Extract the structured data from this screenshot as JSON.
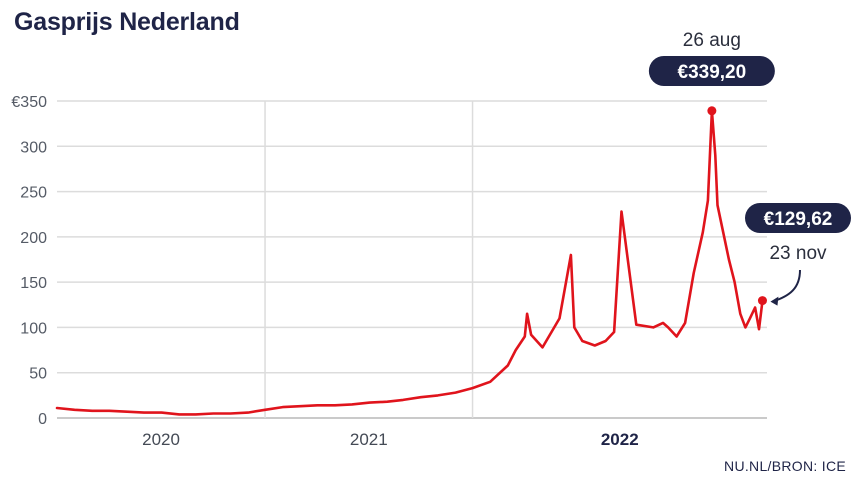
{
  "title": "Gasprijs Nederland",
  "source": "NU.NL/BRON: ICE",
  "colors": {
    "line": "#e0141c",
    "badge": "#1f2447",
    "grid": "#dcdcdc"
  },
  "chart_data": {
    "type": "line",
    "title": "Gasprijs Nederland",
    "xlabel": "",
    "ylabel": "",
    "ylim": [
      0,
      350
    ],
    "xlim": [
      "2019-07-01",
      "2022-12-01"
    ],
    "yticks": [
      {
        "value": 0,
        "label": "0"
      },
      {
        "value": 50,
        "label": "50"
      },
      {
        "value": 100,
        "label": "100"
      },
      {
        "value": 150,
        "label": "150"
      },
      {
        "value": 200,
        "label": "200"
      },
      {
        "value": 250,
        "label": "250"
      },
      {
        "value": 300,
        "label": "300"
      },
      {
        "value": 350,
        "label": "€350"
      }
    ],
    "xticks": [
      {
        "label": "2020",
        "bold": false
      },
      {
        "label": "2021",
        "bold": false
      },
      {
        "label": "2022",
        "bold": true
      }
    ],
    "xgrid_dates": [
      "2020-07-01",
      "2021-07-01"
    ],
    "grid": true,
    "series": [
      {
        "x": [
          "2019-07-01",
          "2019-08-01",
          "2019-09-01",
          "2019-10-01",
          "2019-11-01",
          "2019-12-01",
          "2020-01-01",
          "2020-02-01",
          "2020-03-01",
          "2020-04-01",
          "2020-05-01",
          "2020-06-01",
          "2020-07-01",
          "2020-08-01",
          "2020-09-01",
          "2020-10-01",
          "2020-11-01",
          "2020-12-01",
          "2021-01-01",
          "2021-02-01",
          "2021-03-01",
          "2021-04-01",
          "2021-05-01",
          "2021-06-01",
          "2021-07-01",
          "2021-08-01",
          "2021-09-01",
          "2021-09-15",
          "2021-10-01",
          "2021-10-05",
          "2021-10-12",
          "2021-11-01",
          "2021-12-01",
          "2021-12-21",
          "2021-12-27",
          "2022-01-10",
          "2022-02-01",
          "2022-02-20",
          "2022-03-07",
          "2022-03-20",
          "2022-04-15",
          "2022-05-15",
          "2022-06-01",
          "2022-06-10",
          "2022-06-25",
          "2022-07-10",
          "2022-07-25",
          "2022-08-10",
          "2022-08-19",
          "2022-08-26",
          "2022-09-01",
          "2022-09-05",
          "2022-09-15",
          "2022-09-25",
          "2022-10-05",
          "2022-10-15",
          "2022-10-24",
          "2022-11-01",
          "2022-11-10",
          "2022-11-17",
          "2022-11-23"
        ],
        "y": [
          11,
          9,
          8,
          8,
          7,
          6,
          6,
          4,
          4,
          5,
          5,
          6,
          9,
          12,
          13,
          14,
          14,
          15,
          17,
          18,
          20,
          23,
          25,
          28,
          33,
          40,
          58,
          75,
          90,
          115,
          92,
          78,
          110,
          180,
          100,
          85,
          80,
          85,
          95,
          228,
          103,
          100,
          105,
          100,
          90,
          105,
          160,
          205,
          240,
          339.2,
          290,
          235,
          205,
          175,
          150,
          115,
          100,
          110,
          122,
          98,
          129.62
        ]
      }
    ],
    "annotations": [
      {
        "date_label": "26 aug",
        "value_label": "€339,20",
        "x": "2022-08-26",
        "y": 339.2
      },
      {
        "date_label": "23 nov",
        "value_label": "€129,62",
        "x": "2022-11-23",
        "y": 129.62
      }
    ]
  }
}
